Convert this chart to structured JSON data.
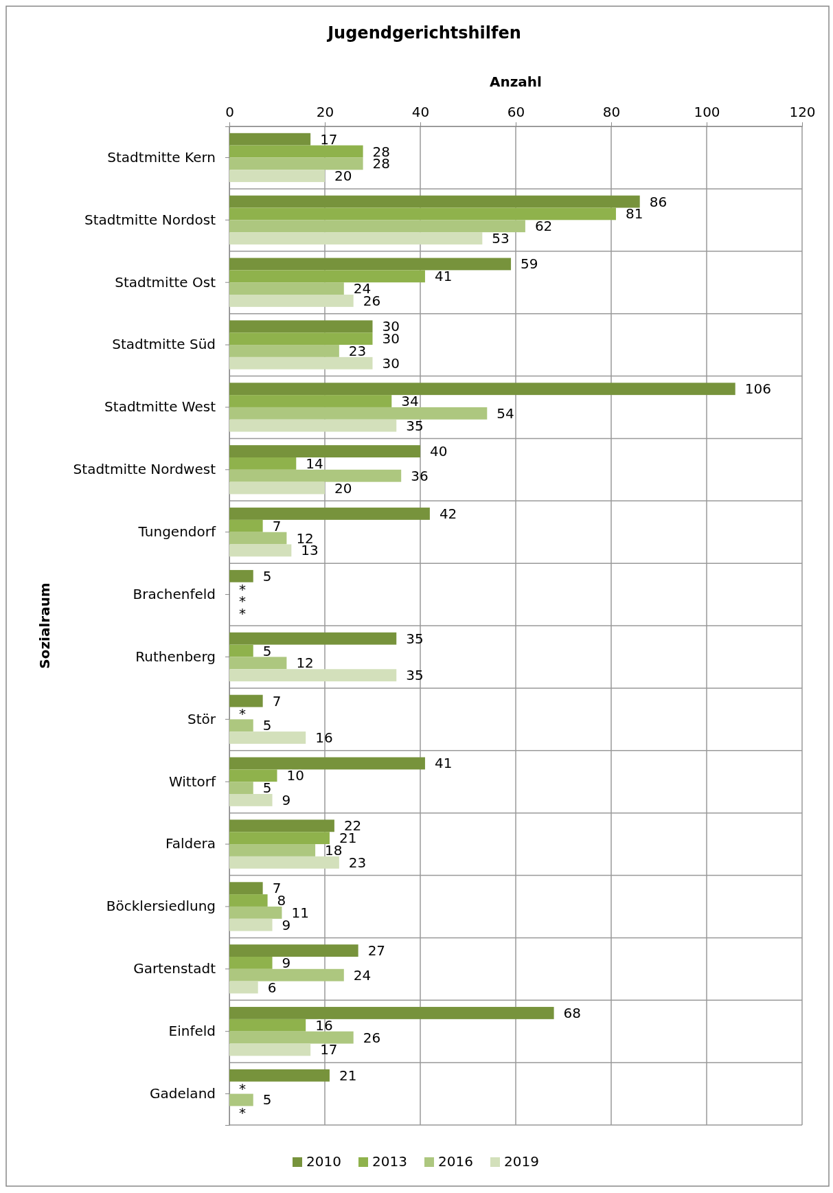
{
  "chart_data": {
    "type": "bar",
    "orientation": "horizontal",
    "title": "Jugendgerichtshilfen",
    "xlabel": "Anzahl",
    "ylabel": "Sozialraum",
    "categories": [
      "Stadtmitte Kern",
      "Stadtmitte Nordost",
      "Stadtmitte Ost",
      "Stadtmitte Süd",
      "Stadtmitte West",
      "Stadtmitte Nordwest",
      "Tungendorf",
      "Brachenfeld",
      "Ruthenberg",
      "Stör",
      "Wittorf",
      "Faldera",
      "Böcklersiedlung",
      "Gartenstadt",
      "Einfeld",
      "Gadeland"
    ],
    "series": [
      {
        "name": "2010",
        "color": "#77933c",
        "values": [
          17,
          86,
          59,
          30,
          106,
          40,
          42,
          5,
          35,
          7,
          41,
          22,
          7,
          27,
          68,
          21
        ],
        "value_labels": [
          "17",
          "86",
          "59",
          "30",
          "106",
          "40",
          "42",
          "5",
          "35",
          "7",
          "41",
          "22",
          "7",
          "27",
          "68",
          "21"
        ]
      },
      {
        "name": "2013",
        "color": "#8fb24c",
        "values": [
          28,
          81,
          41,
          30,
          34,
          14,
          7,
          null,
          5,
          null,
          10,
          21,
          8,
          9,
          16,
          null
        ],
        "value_labels": [
          "28",
          "81",
          "41",
          "30",
          "34",
          "14",
          "7",
          "*",
          "5",
          "*",
          "10",
          "21",
          "8",
          "9",
          "16",
          "*"
        ]
      },
      {
        "name": "2016",
        "color": "#adc77f",
        "values": [
          28,
          62,
          24,
          23,
          54,
          36,
          12,
          null,
          12,
          5,
          5,
          18,
          11,
          24,
          26,
          5
        ],
        "value_labels": [
          "28",
          "62",
          "24",
          "23",
          "54",
          "36",
          "12",
          "*",
          "12",
          "5",
          "5",
          "18",
          "11",
          "24",
          "26",
          "5"
        ]
      },
      {
        "name": "2019",
        "color": "#d3e0bb",
        "values": [
          20,
          53,
          26,
          30,
          35,
          20,
          13,
          null,
          35,
          16,
          9,
          23,
          9,
          6,
          17,
          null
        ],
        "value_labels": [
          "20",
          "53",
          "26",
          "30",
          "35",
          "20",
          "13",
          "*",
          "35",
          "16",
          "9",
          "23",
          "9",
          "6",
          "17",
          "*"
        ]
      }
    ],
    "xlim": [
      0,
      120
    ],
    "xticks": [
      0,
      20,
      40,
      60,
      80,
      100,
      120
    ],
    "grid": true,
    "legend": "bottom"
  }
}
